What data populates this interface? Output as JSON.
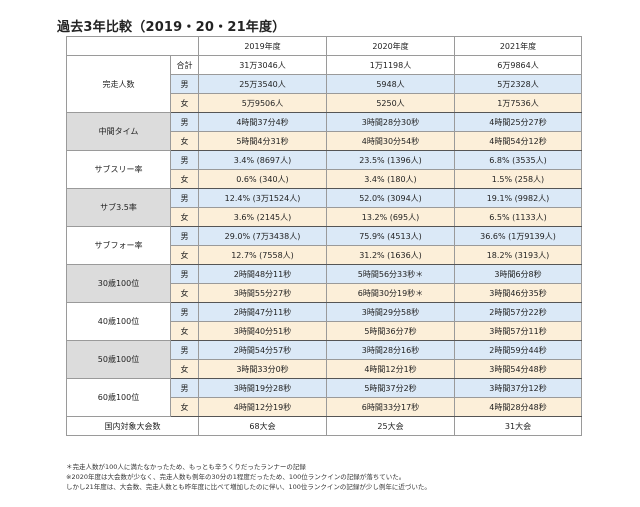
{
  "title": "過去3年比較（2019・20・21年度）",
  "years": [
    "2019年度",
    "2020年度",
    "2021年度"
  ],
  "rows": [
    {
      "category": "完走人数",
      "shade": "w",
      "sub": [
        {
          "label": "合計",
          "kind": "t",
          "values": [
            "31万3046人",
            "1万1198人",
            "6万9864人"
          ]
        },
        {
          "label": "男",
          "kind": "m",
          "values": [
            "25万3540人",
            "5948人",
            "5万2328人"
          ]
        },
        {
          "label": "女",
          "kind": "f",
          "values": [
            "5万9506人",
            "5250人",
            "1万7536人"
          ]
        }
      ]
    },
    {
      "category": "中間タイム",
      "shade": "g",
      "sub": [
        {
          "label": "男",
          "kind": "m",
          "values": [
            "4時間37分4秒",
            "3時間28分30秒",
            "4時間25分27秒"
          ]
        },
        {
          "label": "女",
          "kind": "f",
          "values": [
            "5時間4分31秒",
            "4時間30分54秒",
            "4時間54分12秒"
          ]
        }
      ]
    },
    {
      "category": "サブスリー率",
      "shade": "w",
      "sub": [
        {
          "label": "男",
          "kind": "m",
          "values": [
            "3.4% (8697人)",
            "23.5% (1396人)",
            "6.8% (3535人)"
          ]
        },
        {
          "label": "女",
          "kind": "f",
          "values": [
            "0.6% (340人)",
            "3.4% (180人)",
            "1.5% (258人)"
          ]
        }
      ]
    },
    {
      "category": "サブ3.5率",
      "shade": "g",
      "sub": [
        {
          "label": "男",
          "kind": "m",
          "values": [
            "12.4% (3万1524人)",
            "52.0% (3094人)",
            "19.1% (9982人)"
          ]
        },
        {
          "label": "女",
          "kind": "f",
          "values": [
            "3.6% (2145人)",
            "13.2% (695人)",
            "6.5% (1133人)"
          ]
        }
      ]
    },
    {
      "category": "サブフォー率",
      "shade": "w",
      "sub": [
        {
          "label": "男",
          "kind": "m",
          "values": [
            "29.0% (7万3438人)",
            "75.9% (4513人)",
            "36.6% (1万9139人)"
          ]
        },
        {
          "label": "女",
          "kind": "f",
          "values": [
            "12.7% (7558人)",
            "31.2% (1636人)",
            "18.2% (3193人)"
          ]
        }
      ]
    },
    {
      "category": "30歳100位",
      "shade": "g",
      "sub": [
        {
          "label": "男",
          "kind": "m",
          "values": [
            "2時間48分11秒",
            "5時間56分33秒＊",
            "3時間6分8秒"
          ]
        },
        {
          "label": "女",
          "kind": "f",
          "values": [
            "3時間55分27秒",
            "6時間30分19秒＊",
            "3時間46分35秒"
          ]
        }
      ]
    },
    {
      "category": "40歳100位",
      "shade": "w",
      "sub": [
        {
          "label": "男",
          "kind": "m",
          "values": [
            "2時間47分11秒",
            "3時間29分58秒",
            "2時間57分22秒"
          ]
        },
        {
          "label": "女",
          "kind": "f",
          "values": [
            "3時間40分51秒",
            "5時間36分7秒",
            "3時間57分11秒"
          ]
        }
      ]
    },
    {
      "category": "50歳100位",
      "shade": "g",
      "sub": [
        {
          "label": "男",
          "kind": "m",
          "values": [
            "2時間54分57秒",
            "3時間28分16秒",
            "2時間59分44秒"
          ]
        },
        {
          "label": "女",
          "kind": "f",
          "values": [
            "3時間33分0秒",
            "4時間12分1秒",
            "3時間54分48秒"
          ]
        }
      ]
    },
    {
      "category": "60歳100位",
      "shade": "w",
      "sub": [
        {
          "label": "男",
          "kind": "m",
          "values": [
            "3時間19分28秒",
            "5時間37分2秒",
            "3時間37分12秒"
          ]
        },
        {
          "label": "女",
          "kind": "f",
          "values": [
            "4時間12分19秒",
            "6時間33分17秒",
            "4時間28分48秒"
          ]
        }
      ]
    }
  ],
  "footer": {
    "label": "国内対象大会数",
    "values": [
      "68大会",
      "25大会",
      "31大会"
    ]
  },
  "notes": [
    "＊完走人数が100人に満たなかったため、もっとも辛うくりだったランナーの記録",
    "※2020年度は大会数が少なく、完走人数も例年の30分の1程度だったため、100位ランクインの記録が落ちていた。",
    "しかし21年度は、大会数、完走人数とも昨年度に比べて増加したのに伴い、100位ランクインの記録が少し例年に近づいた。"
  ]
}
